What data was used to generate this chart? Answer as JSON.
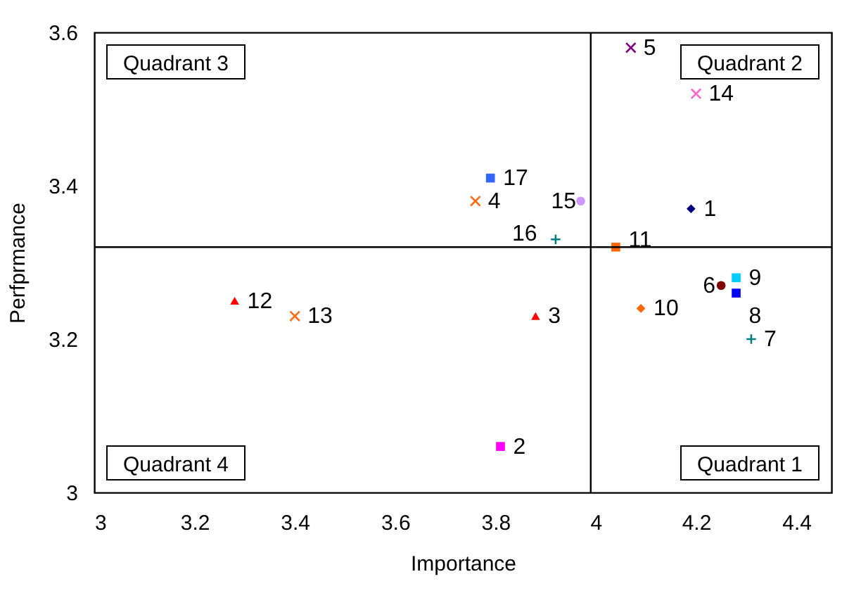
{
  "chart_data": {
    "type": "scatter",
    "xlabel": "Importance",
    "ylabel": "Perfprmance",
    "xlim": [
      3,
      4.47
    ],
    "xticks": [
      3,
      3.2,
      3.4,
      3.6,
      3.8,
      4,
      4.2,
      4.4
    ],
    "ylim": [
      3,
      3.6
    ],
    "yticks": [
      3,
      3.2,
      3.4,
      3.6
    ],
    "grid": false,
    "ref_lines": [
      {
        "axis": "x",
        "value": 3.99,
        "color": "#000000"
      },
      {
        "axis": "y",
        "value": 3.32,
        "color": "#000000"
      }
    ],
    "annotations": [
      "Quadrant 3",
      "Quadrant 2",
      "Quadrant 4",
      "Quadrant 1"
    ],
    "series": [
      {
        "name": "1",
        "color": "#000080",
        "marker": "diamond",
        "x": [
          4.19
        ],
        "values": [
          3.37
        ]
      },
      {
        "name": "2",
        "color": "#ff00ff",
        "marker": "square",
        "x": [
          3.81
        ],
        "values": [
          3.06
        ]
      },
      {
        "name": "3",
        "color": "#ff0000",
        "marker": "triangle",
        "x": [
          3.88
        ],
        "values": [
          3.23
        ]
      },
      {
        "name": "4",
        "color": "#ff6a13",
        "marker": "cross",
        "x": [
          3.76
        ],
        "values": [
          3.38
        ]
      },
      {
        "name": "5",
        "color": "#800080",
        "marker": "cross",
        "x": [
          4.07
        ],
        "values": [
          3.58
        ]
      },
      {
        "name": "6",
        "color": "#800000",
        "marker": "circle",
        "x": [
          4.25
        ],
        "values": [
          3.27
        ]
      },
      {
        "name": "7",
        "color": "#008080",
        "marker": "plus",
        "x": [
          4.31
        ],
        "values": [
          3.2
        ]
      },
      {
        "name": "8",
        "color": "#0000ff",
        "marker": "square",
        "x": [
          4.28
        ],
        "values": [
          3.26
        ]
      },
      {
        "name": "9",
        "color": "#00ccff",
        "marker": "square",
        "x": [
          4.28
        ],
        "values": [
          3.28
        ]
      },
      {
        "name": "10",
        "color": "#ff6600",
        "marker": "diamond",
        "x": [
          4.09
        ],
        "values": [
          3.24
        ]
      },
      {
        "name": "11",
        "color": "#ff6600",
        "marker": "square",
        "x": [
          4.04
        ],
        "values": [
          3.32
        ]
      },
      {
        "name": "12",
        "color": "#ff0000",
        "marker": "triangle",
        "x": [
          3.28
        ],
        "values": [
          3.25
        ]
      },
      {
        "name": "13",
        "color": "#ff6a13",
        "marker": "cross",
        "x": [
          3.4
        ],
        "values": [
          3.23
        ]
      },
      {
        "name": "14",
        "color": "#ff66cc",
        "marker": "cross",
        "x": [
          4.2
        ],
        "values": [
          3.52
        ]
      },
      {
        "name": "15",
        "color": "#cc99ff",
        "marker": "circle",
        "x": [
          3.97
        ],
        "values": [
          3.38
        ]
      },
      {
        "name": "16",
        "color": "#008080",
        "marker": "plus",
        "x": [
          3.92
        ],
        "values": [
          3.33
        ]
      },
      {
        "name": "17",
        "color": "#3366ff",
        "marker": "square",
        "x": [
          3.79
        ],
        "values": [
          3.41
        ]
      }
    ]
  }
}
